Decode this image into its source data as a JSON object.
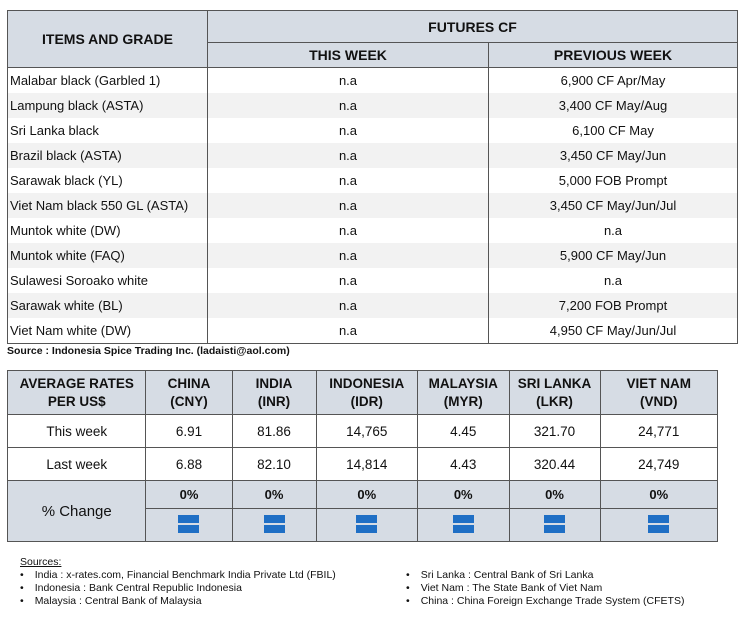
{
  "futures": {
    "headers": {
      "items": "ITEMS AND GRADE",
      "futures": "FUTURES CF",
      "this_week": "THIS WEEK",
      "previous_week": "PREVIOUS WEEK"
    },
    "rows": [
      {
        "item": "Malabar black (Garbled 1)",
        "this_week": "n.a",
        "previous_week": "6,900 CF Apr/May"
      },
      {
        "item": "Lampung black (ASTA)",
        "this_week": "n.a",
        "previous_week": "3,400 CF May/Aug"
      },
      {
        "item": "Sri Lanka black",
        "this_week": "n.a",
        "previous_week": "6,100 CF May"
      },
      {
        "item": "Brazil black (ASTA)",
        "this_week": "n.a",
        "previous_week": "3,450 CF May/Jun"
      },
      {
        "item": "Sarawak black (YL)",
        "this_week": "n.a",
        "previous_week": "5,000 FOB Prompt"
      },
      {
        "item": "Viet Nam black 550 GL (ASTA)",
        "this_week": "n.a",
        "previous_week": "3,450 CF May/Jun/Jul"
      },
      {
        "item": "Muntok white (DW)",
        "this_week": "n.a",
        "previous_week": "n.a"
      },
      {
        "item": "Muntok white (FAQ)",
        "this_week": "n.a",
        "previous_week": "5,900 CF May/Jun"
      },
      {
        "item": "Sulawesi Soroako white",
        "this_week": "n.a",
        "previous_week": "n.a"
      },
      {
        "item": "Sarawak  white (BL)",
        "this_week": "n.a",
        "previous_week": "7,200 FOB Prompt"
      },
      {
        "item": "Viet Nam white (DW)",
        "this_week": "n.a",
        "previous_week": "4,950 CF May/Jun/Jul"
      }
    ],
    "source": "Source : Indonesia Spice Trading Inc. (ladaisti@aol.com)"
  },
  "rates": {
    "corner": [
      "AVERAGE RATES",
      "PER US$"
    ],
    "currencies": [
      {
        "country": "CHINA",
        "code": "(CNY)",
        "this_week": "6.91",
        "last_week": "6.88",
        "change": "0%",
        "trend": "equal-icon"
      },
      {
        "country": "INDIA",
        "code": "(INR)",
        "this_week": "81.86",
        "last_week": "82.10",
        "change": "0%",
        "trend": "equal-icon"
      },
      {
        "country": "INDONESIA",
        "code": "(IDR)",
        "this_week": "14,765",
        "last_week": "14,814",
        "change": "0%",
        "trend": "equal-icon"
      },
      {
        "country": "MALAYSIA",
        "code": "(MYR)",
        "this_week": "4.45",
        "last_week": "4.43",
        "change": "0%",
        "trend": "equal-icon"
      },
      {
        "country": "SRI LANKA",
        "code": "(LKR)",
        "this_week": "321.70",
        "last_week": "320.44",
        "change": "0%",
        "trend": "equal-icon"
      },
      {
        "country": "VIET NAM",
        "code": "(VND)",
        "this_week": "24,771",
        "last_week": "24,749",
        "change": "0%",
        "trend": "equal-icon"
      }
    ],
    "row_labels": {
      "this_week": "This week",
      "last_week": "Last week",
      "change": "% Change"
    },
    "trend_color": "#1f6fc5"
  },
  "sources": {
    "heading": "Sources:",
    "left": [
      "India : x-rates.com, Financial Benchmark India Private Ltd (FBIL)",
      "Indonesia : Bank Central Republic Indonesia",
      "Malaysia : Central Bank of Malaysia"
    ],
    "right": [
      "Sri Lanka : Central Bank of Sri Lanka",
      "Viet Nam : The State Bank of Viet Nam",
      "China : China Foreign Exchange Trade System (CFETS)"
    ]
  }
}
